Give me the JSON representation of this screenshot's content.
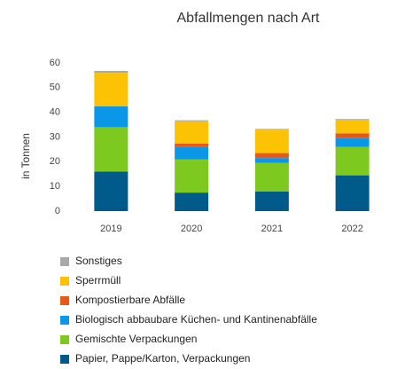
{
  "chart_data": {
    "type": "stacked_bar",
    "title": "Abfallmengen nach Art",
    "y_label": "in Tonnen",
    "categories": [
      "2019",
      "2020",
      "2021",
      "2022"
    ],
    "series": [
      {
        "name": "Papier, Pappe/Karton, Verpackungen",
        "color": "#005b8a",
        "values": [
          16,
          7.5,
          8,
          14.5
        ]
      },
      {
        "name": "Gemischte Verpackungen",
        "color": "#7ec91f",
        "values": [
          18,
          13.4,
          11.5,
          11.5
        ]
      },
      {
        "name": "Biologisch abbaubare Küchen- und Kantinenabfälle",
        "color": "#0a97e8",
        "values": [
          8.5,
          5,
          2,
          3.5
        ]
      },
      {
        "name": "Kompostierbare Abfälle",
        "color": "#e8581a",
        "values": [
          0,
          1.5,
          2,
          2
        ]
      },
      {
        "name": "Sperrmüll",
        "color": "#fcc204",
        "values": [
          13.5,
          9,
          9.5,
          5.5
        ]
      },
      {
        "name": "Sonstiges",
        "color": "#a8a8a8",
        "values": [
          0.8,
          0.4,
          0.3,
          0.3
        ]
      }
    ],
    "ylim": [
      0,
      60
    ],
    "yticks": [
      0,
      10,
      20,
      30,
      40,
      50,
      60
    ],
    "grid": false
  }
}
